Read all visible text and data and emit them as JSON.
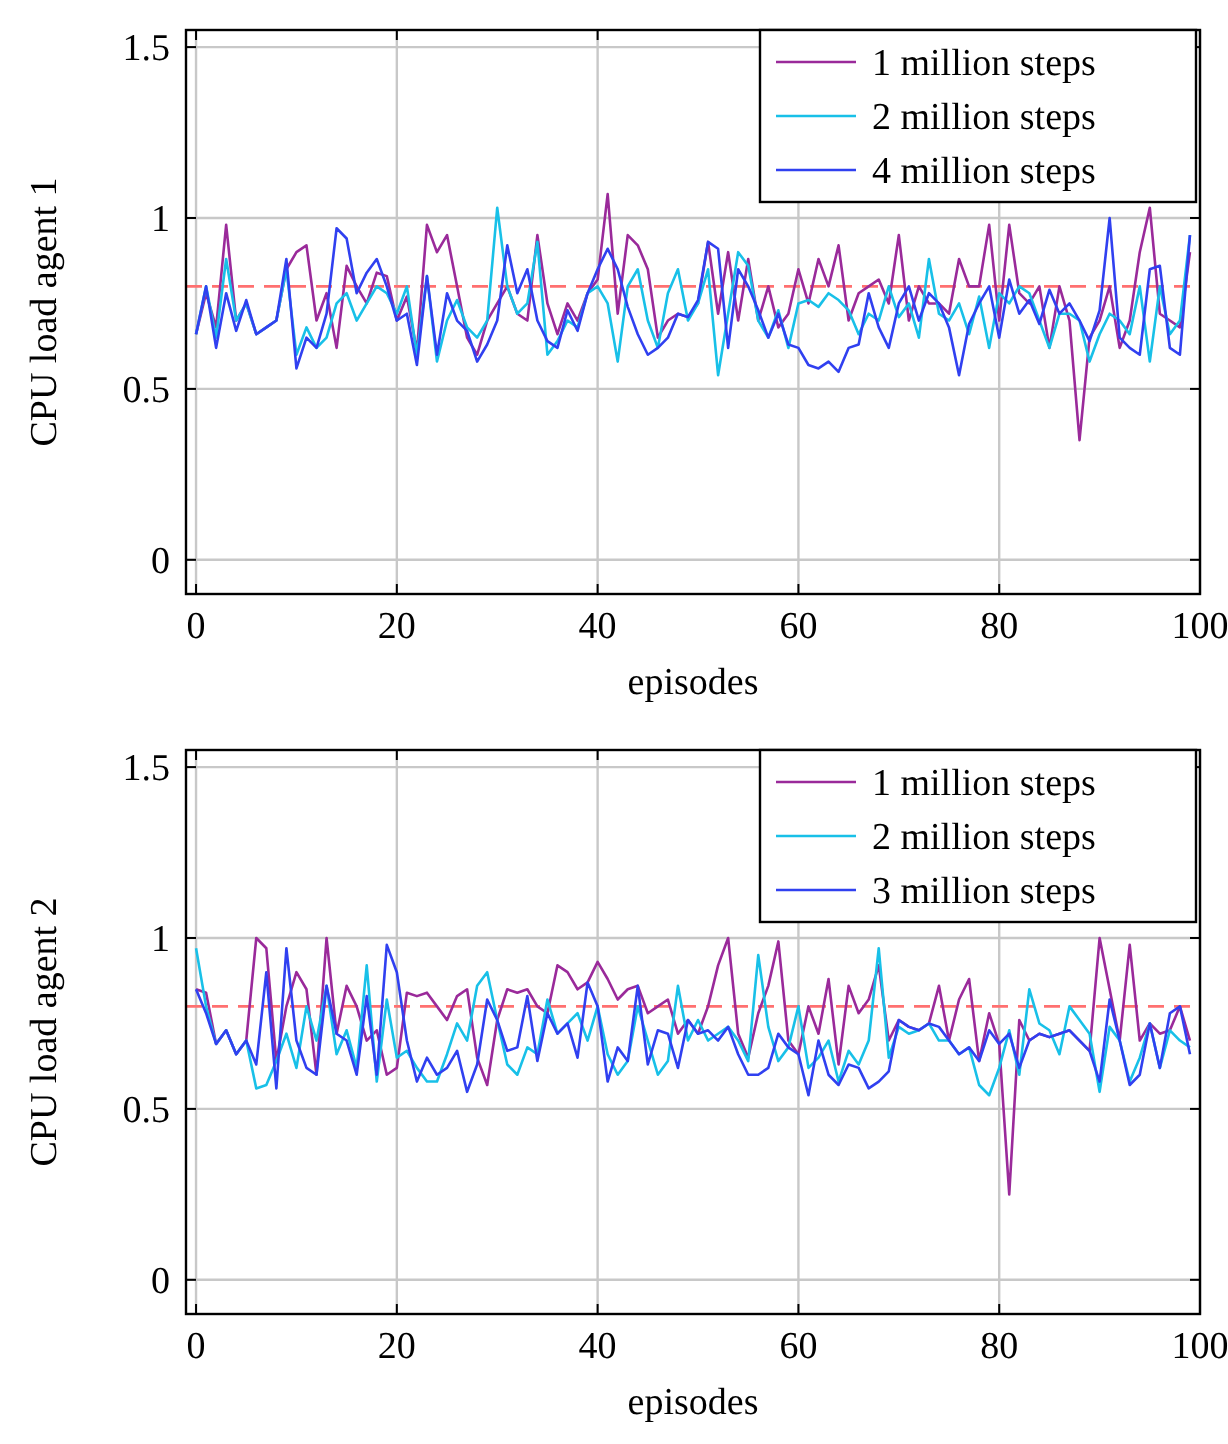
{
  "chart_data": [
    {
      "type": "line",
      "xlabel": "episodes",
      "ylabel": "CPU load agent 1",
      "xlim": [
        -1,
        100
      ],
      "ylim": [
        -0.1,
        1.55
      ],
      "xticks": [
        0,
        20,
        40,
        60,
        80,
        100
      ],
      "yticks": [
        0,
        0.5,
        1,
        1.5
      ],
      "grid": true,
      "legend": "top right",
      "marker": "none",
      "line_style": "solid",
      "ref_lines": [
        {
          "axis": "y",
          "value": 0.8,
          "color": "#ff7070",
          "line_style": "dashed"
        }
      ],
      "x": [
        0,
        1,
        2,
        3,
        4,
        5,
        6,
        7,
        8,
        9,
        10,
        11,
        12,
        13,
        14,
        15,
        16,
        17,
        18,
        19,
        20,
        21,
        22,
        23,
        24,
        25,
        26,
        27,
        28,
        29,
        30,
        31,
        32,
        33,
        34,
        35,
        36,
        37,
        38,
        39,
        40,
        41,
        42,
        43,
        44,
        45,
        46,
        47,
        48,
        49,
        50,
        51,
        52,
        53,
        54,
        55,
        56,
        57,
        58,
        59,
        60,
        61,
        62,
        63,
        64,
        65,
        66,
        67,
        68,
        69,
        70,
        71,
        72,
        73,
        74,
        75,
        76,
        77,
        78,
        79,
        80,
        81,
        82,
        83,
        84,
        85,
        86,
        87,
        88,
        89,
        90,
        91,
        92,
        93,
        94,
        95,
        96,
        97,
        98,
        99
      ],
      "series": [
        {
          "name": "1 million steps",
          "color": "#9a2a9a",
          "values": [
            0.66,
            0.78,
            0.68,
            0.98,
            0.7,
            0.75,
            0.66,
            0.68,
            0.7,
            0.85,
            0.9,
            0.92,
            0.7,
            0.78,
            0.62,
            0.86,
            0.8,
            0.75,
            0.84,
            0.83,
            0.7,
            0.77,
            0.61,
            0.98,
            0.9,
            0.95,
            0.8,
            0.65,
            0.6,
            0.7,
            0.75,
            0.8,
            0.72,
            0.7,
            0.95,
            0.75,
            0.66,
            0.75,
            0.7,
            0.78,
            0.82,
            1.07,
            0.72,
            0.95,
            0.92,
            0.85,
            0.65,
            0.7,
            0.72,
            0.71,
            0.75,
            0.93,
            0.72,
            0.9,
            0.7,
            0.88,
            0.7,
            0.8,
            0.68,
            0.72,
            0.85,
            0.75,
            0.88,
            0.8,
            0.92,
            0.7,
            0.78,
            0.8,
            0.82,
            0.75,
            0.95,
            0.7,
            0.8,
            0.75,
            0.75,
            0.72,
            0.88,
            0.8,
            0.8,
            0.98,
            0.7,
            0.98,
            0.78,
            0.75,
            0.8,
            0.62,
            0.8,
            0.7,
            0.35,
            0.65,
            0.7,
            0.8,
            0.62,
            0.7,
            0.9,
            1.03,
            0.72,
            0.7,
            0.68,
            0.9
          ]
        },
        {
          "name": "2 million steps",
          "color": "#18c0e8",
          "values": [
            0.66,
            0.8,
            0.65,
            0.88,
            0.7,
            0.75,
            0.66,
            0.68,
            0.7,
            0.85,
            0.6,
            0.68,
            0.62,
            0.65,
            0.75,
            0.78,
            0.7,
            0.75,
            0.8,
            0.78,
            0.72,
            0.8,
            0.6,
            0.83,
            0.58,
            0.7,
            0.76,
            0.68,
            0.65,
            0.7,
            1.03,
            0.8,
            0.72,
            0.75,
            0.93,
            0.6,
            0.64,
            0.7,
            0.68,
            0.78,
            0.8,
            0.75,
            0.58,
            0.8,
            0.85,
            0.7,
            0.62,
            0.78,
            0.85,
            0.7,
            0.75,
            0.85,
            0.54,
            0.72,
            0.9,
            0.86,
            0.7,
            0.65,
            0.73,
            0.62,
            0.75,
            0.76,
            0.74,
            0.78,
            0.76,
            0.73,
            0.66,
            0.72,
            0.7,
            0.8,
            0.71,
            0.75,
            0.65,
            0.88,
            0.72,
            0.7,
            0.75,
            0.66,
            0.77,
            0.62,
            0.78,
            0.75,
            0.8,
            0.78,
            0.7,
            0.62,
            0.72,
            0.72,
            0.7,
            0.58,
            0.66,
            0.72,
            0.7,
            0.66,
            0.8,
            0.58,
            0.8,
            0.66,
            0.7,
            0.95
          ]
        },
        {
          "name": "4 million steps",
          "color": "#3040f0",
          "values": [
            0.66,
            0.8,
            0.62,
            0.78,
            0.67,
            0.76,
            0.66,
            0.68,
            0.7,
            0.88,
            0.56,
            0.65,
            0.62,
            0.72,
            0.97,
            0.94,
            0.78,
            0.84,
            0.88,
            0.8,
            0.7,
            0.72,
            0.57,
            0.83,
            0.6,
            0.78,
            0.7,
            0.67,
            0.58,
            0.63,
            0.7,
            0.92,
            0.78,
            0.85,
            0.7,
            0.64,
            0.62,
            0.73,
            0.67,
            0.78,
            0.85,
            0.91,
            0.85,
            0.74,
            0.66,
            0.6,
            0.62,
            0.65,
            0.72,
            0.71,
            0.76,
            0.93,
            0.91,
            0.62,
            0.85,
            0.8,
            0.73,
            0.65,
            0.72,
            0.63,
            0.62,
            0.57,
            0.56,
            0.58,
            0.55,
            0.62,
            0.63,
            0.78,
            0.68,
            0.62,
            0.75,
            0.8,
            0.7,
            0.78,
            0.75,
            0.68,
            0.54,
            0.69,
            0.75,
            0.8,
            0.65,
            0.82,
            0.72,
            0.76,
            0.69,
            0.79,
            0.72,
            0.75,
            0.7,
            0.64,
            0.73,
            1.0,
            0.65,
            0.62,
            0.6,
            0.85,
            0.86,
            0.62,
            0.6,
            0.95
          ]
        }
      ]
    },
    {
      "type": "line",
      "xlabel": "episodes",
      "ylabel": "CPU load agent 2",
      "xlim": [
        -1,
        100
      ],
      "ylim": [
        -0.1,
        1.55
      ],
      "xticks": [
        0,
        20,
        40,
        60,
        80,
        100
      ],
      "yticks": [
        0,
        0.5,
        1,
        1.5
      ],
      "grid": true,
      "legend": "top right",
      "marker": "none",
      "line_style": "solid",
      "ref_lines": [
        {
          "axis": "y",
          "value": 0.8,
          "color": "#ff7070",
          "line_style": "dashed"
        }
      ],
      "x": [
        0,
        1,
        2,
        3,
        4,
        5,
        6,
        7,
        8,
        9,
        10,
        11,
        12,
        13,
        14,
        15,
        16,
        17,
        18,
        19,
        20,
        21,
        22,
        23,
        24,
        25,
        26,
        27,
        28,
        29,
        30,
        31,
        32,
        33,
        34,
        35,
        36,
        37,
        38,
        39,
        40,
        41,
        42,
        43,
        44,
        45,
        46,
        47,
        48,
        49,
        50,
        51,
        52,
        53,
        54,
        55,
        56,
        57,
        58,
        59,
        60,
        61,
        62,
        63,
        64,
        65,
        66,
        67,
        68,
        69,
        70,
        71,
        72,
        73,
        74,
        75,
        76,
        77,
        78,
        79,
        80,
        81,
        82,
        83,
        84,
        85,
        86,
        87,
        88,
        89,
        90,
        91,
        92,
        93,
        94,
        95,
        96,
        97,
        98,
        99
      ],
      "series": [
        {
          "name": "1 million steps",
          "color": "#9a2a9a",
          "values": [
            0.85,
            0.84,
            0.69,
            0.73,
            0.66,
            0.7,
            1.0,
            0.97,
            0.64,
            0.8,
            0.9,
            0.85,
            0.6,
            1.0,
            0.72,
            0.86,
            0.8,
            0.7,
            0.73,
            0.6,
            0.62,
            0.84,
            0.83,
            0.84,
            0.8,
            0.76,
            0.83,
            0.85,
            0.65,
            0.57,
            0.76,
            0.85,
            0.84,
            0.85,
            0.8,
            0.78,
            0.92,
            0.9,
            0.85,
            0.87,
            0.93,
            0.88,
            0.82,
            0.85,
            0.86,
            0.78,
            0.8,
            0.82,
            0.72,
            0.76,
            0.72,
            0.8,
            0.92,
            1.0,
            0.72,
            0.65,
            0.78,
            0.86,
            0.99,
            0.7,
            0.66,
            0.8,
            0.72,
            0.88,
            0.63,
            0.86,
            0.78,
            0.82,
            0.92,
            0.7,
            0.76,
            0.74,
            0.73,
            0.75,
            0.86,
            0.7,
            0.82,
            0.88,
            0.64,
            0.78,
            0.69,
            0.25,
            0.76,
            0.7,
            0.72,
            0.71,
            0.72,
            0.73,
            0.7,
            0.67,
            1.0,
            0.85,
            0.7,
            0.98,
            0.7,
            0.75,
            0.72,
            0.73,
            0.8,
            0.7
          ]
        },
        {
          "name": "2 million steps",
          "color": "#18c0e8",
          "values": [
            0.97,
            0.8,
            0.69,
            0.73,
            0.66,
            0.7,
            0.56,
            0.57,
            0.64,
            0.72,
            0.62,
            0.8,
            0.7,
            0.86,
            0.66,
            0.73,
            0.62,
            0.92,
            0.58,
            0.82,
            0.65,
            0.67,
            0.62,
            0.58,
            0.58,
            0.66,
            0.75,
            0.7,
            0.86,
            0.9,
            0.76,
            0.63,
            0.6,
            0.68,
            0.66,
            0.82,
            0.72,
            0.75,
            0.78,
            0.7,
            0.8,
            0.66,
            0.6,
            0.64,
            0.8,
            0.7,
            0.6,
            0.64,
            0.86,
            0.7,
            0.76,
            0.7,
            0.72,
            0.74,
            0.7,
            0.64,
            0.95,
            0.74,
            0.64,
            0.68,
            0.8,
            0.62,
            0.65,
            0.7,
            0.58,
            0.67,
            0.63,
            0.7,
            0.97,
            0.65,
            0.74,
            0.72,
            0.73,
            0.75,
            0.7,
            0.7,
            0.66,
            0.68,
            0.57,
            0.54,
            0.62,
            0.73,
            0.6,
            0.85,
            0.75,
            0.73,
            0.66,
            0.8,
            0.76,
            0.72,
            0.55,
            0.74,
            0.7,
            0.58,
            0.65,
            0.75,
            0.62,
            0.73,
            0.7,
            0.68
          ]
        },
        {
          "name": "3 million steps",
          "color": "#3040f0",
          "values": [
            0.85,
            0.78,
            0.69,
            0.73,
            0.66,
            0.7,
            0.63,
            0.9,
            0.56,
            0.97,
            0.7,
            0.62,
            0.6,
            0.86,
            0.72,
            0.7,
            0.6,
            0.83,
            0.6,
            0.98,
            0.9,
            0.7,
            0.58,
            0.65,
            0.6,
            0.62,
            0.67,
            0.55,
            0.63,
            0.82,
            0.76,
            0.67,
            0.68,
            0.83,
            0.64,
            0.78,
            0.72,
            0.75,
            0.65,
            0.87,
            0.8,
            0.58,
            0.68,
            0.64,
            0.86,
            0.63,
            0.73,
            0.72,
            0.62,
            0.76,
            0.72,
            0.73,
            0.7,
            0.74,
            0.66,
            0.6,
            0.6,
            0.62,
            0.72,
            0.68,
            0.66,
            0.54,
            0.7,
            0.6,
            0.57,
            0.63,
            0.62,
            0.56,
            0.58,
            0.61,
            0.76,
            0.74,
            0.73,
            0.75,
            0.74,
            0.7,
            0.66,
            0.68,
            0.64,
            0.73,
            0.69,
            0.72,
            0.62,
            0.7,
            0.72,
            0.71,
            0.72,
            0.73,
            0.7,
            0.67,
            0.58,
            0.82,
            0.7,
            0.57,
            0.6,
            0.75,
            0.62,
            0.78,
            0.8,
            0.66
          ]
        }
      ]
    }
  ]
}
